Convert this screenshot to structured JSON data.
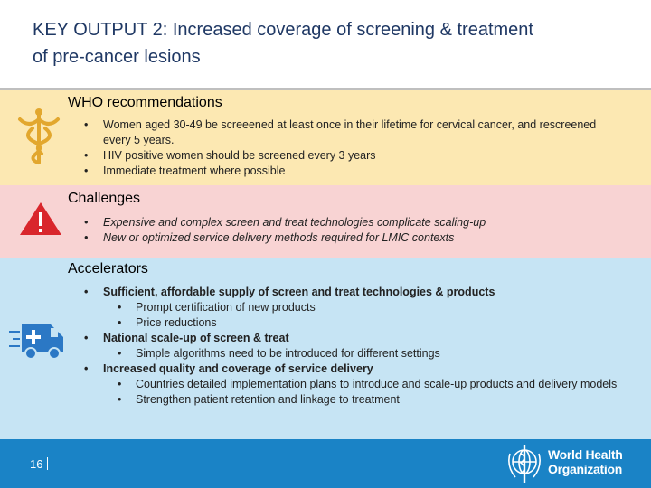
{
  "title_lines": [
    "KEY OUTPUT 2: Increased coverage of screening & treatment",
    "of pre-cancer lesions"
  ],
  "sections": [
    {
      "heading": "WHO recommendations",
      "items": [
        {
          "text": "Women aged 30-49 be screeened at least once in their lifetime for cervical cancer, and rescreened every 5 years."
        },
        {
          "text": "HIV positive women should be screened every 3 years"
        },
        {
          "text": "Immediate treatment where possible"
        }
      ]
    },
    {
      "heading": "Challenges",
      "items": [
        {
          "text": "Expensive and complex screen and treat technologies complicate scaling-up"
        },
        {
          "text": "New or optimized service delivery methods required for LMIC contexts"
        }
      ]
    },
    {
      "heading": "Accelerators",
      "items": [
        {
          "text": "Sufficient, affordable supply of screen and treat technologies & products",
          "sub": [
            "Prompt certification of new products",
            "Price reductions"
          ]
        },
        {
          "text": "National scale-up of screen & treat",
          "sub": [
            "Simple algorithms need to be introduced for different settings"
          ]
        },
        {
          "text": "Increased quality and coverage of service delivery",
          "sub": [
            "Countries detailed implementation plans to introduce and scale-up products and delivery models",
            "Strengthen patient retention and linkage to treatment"
          ]
        }
      ]
    }
  ],
  "footer": {
    "page": "16",
    "logo_line1": "World Health",
    "logo_line2": "Organization"
  }
}
